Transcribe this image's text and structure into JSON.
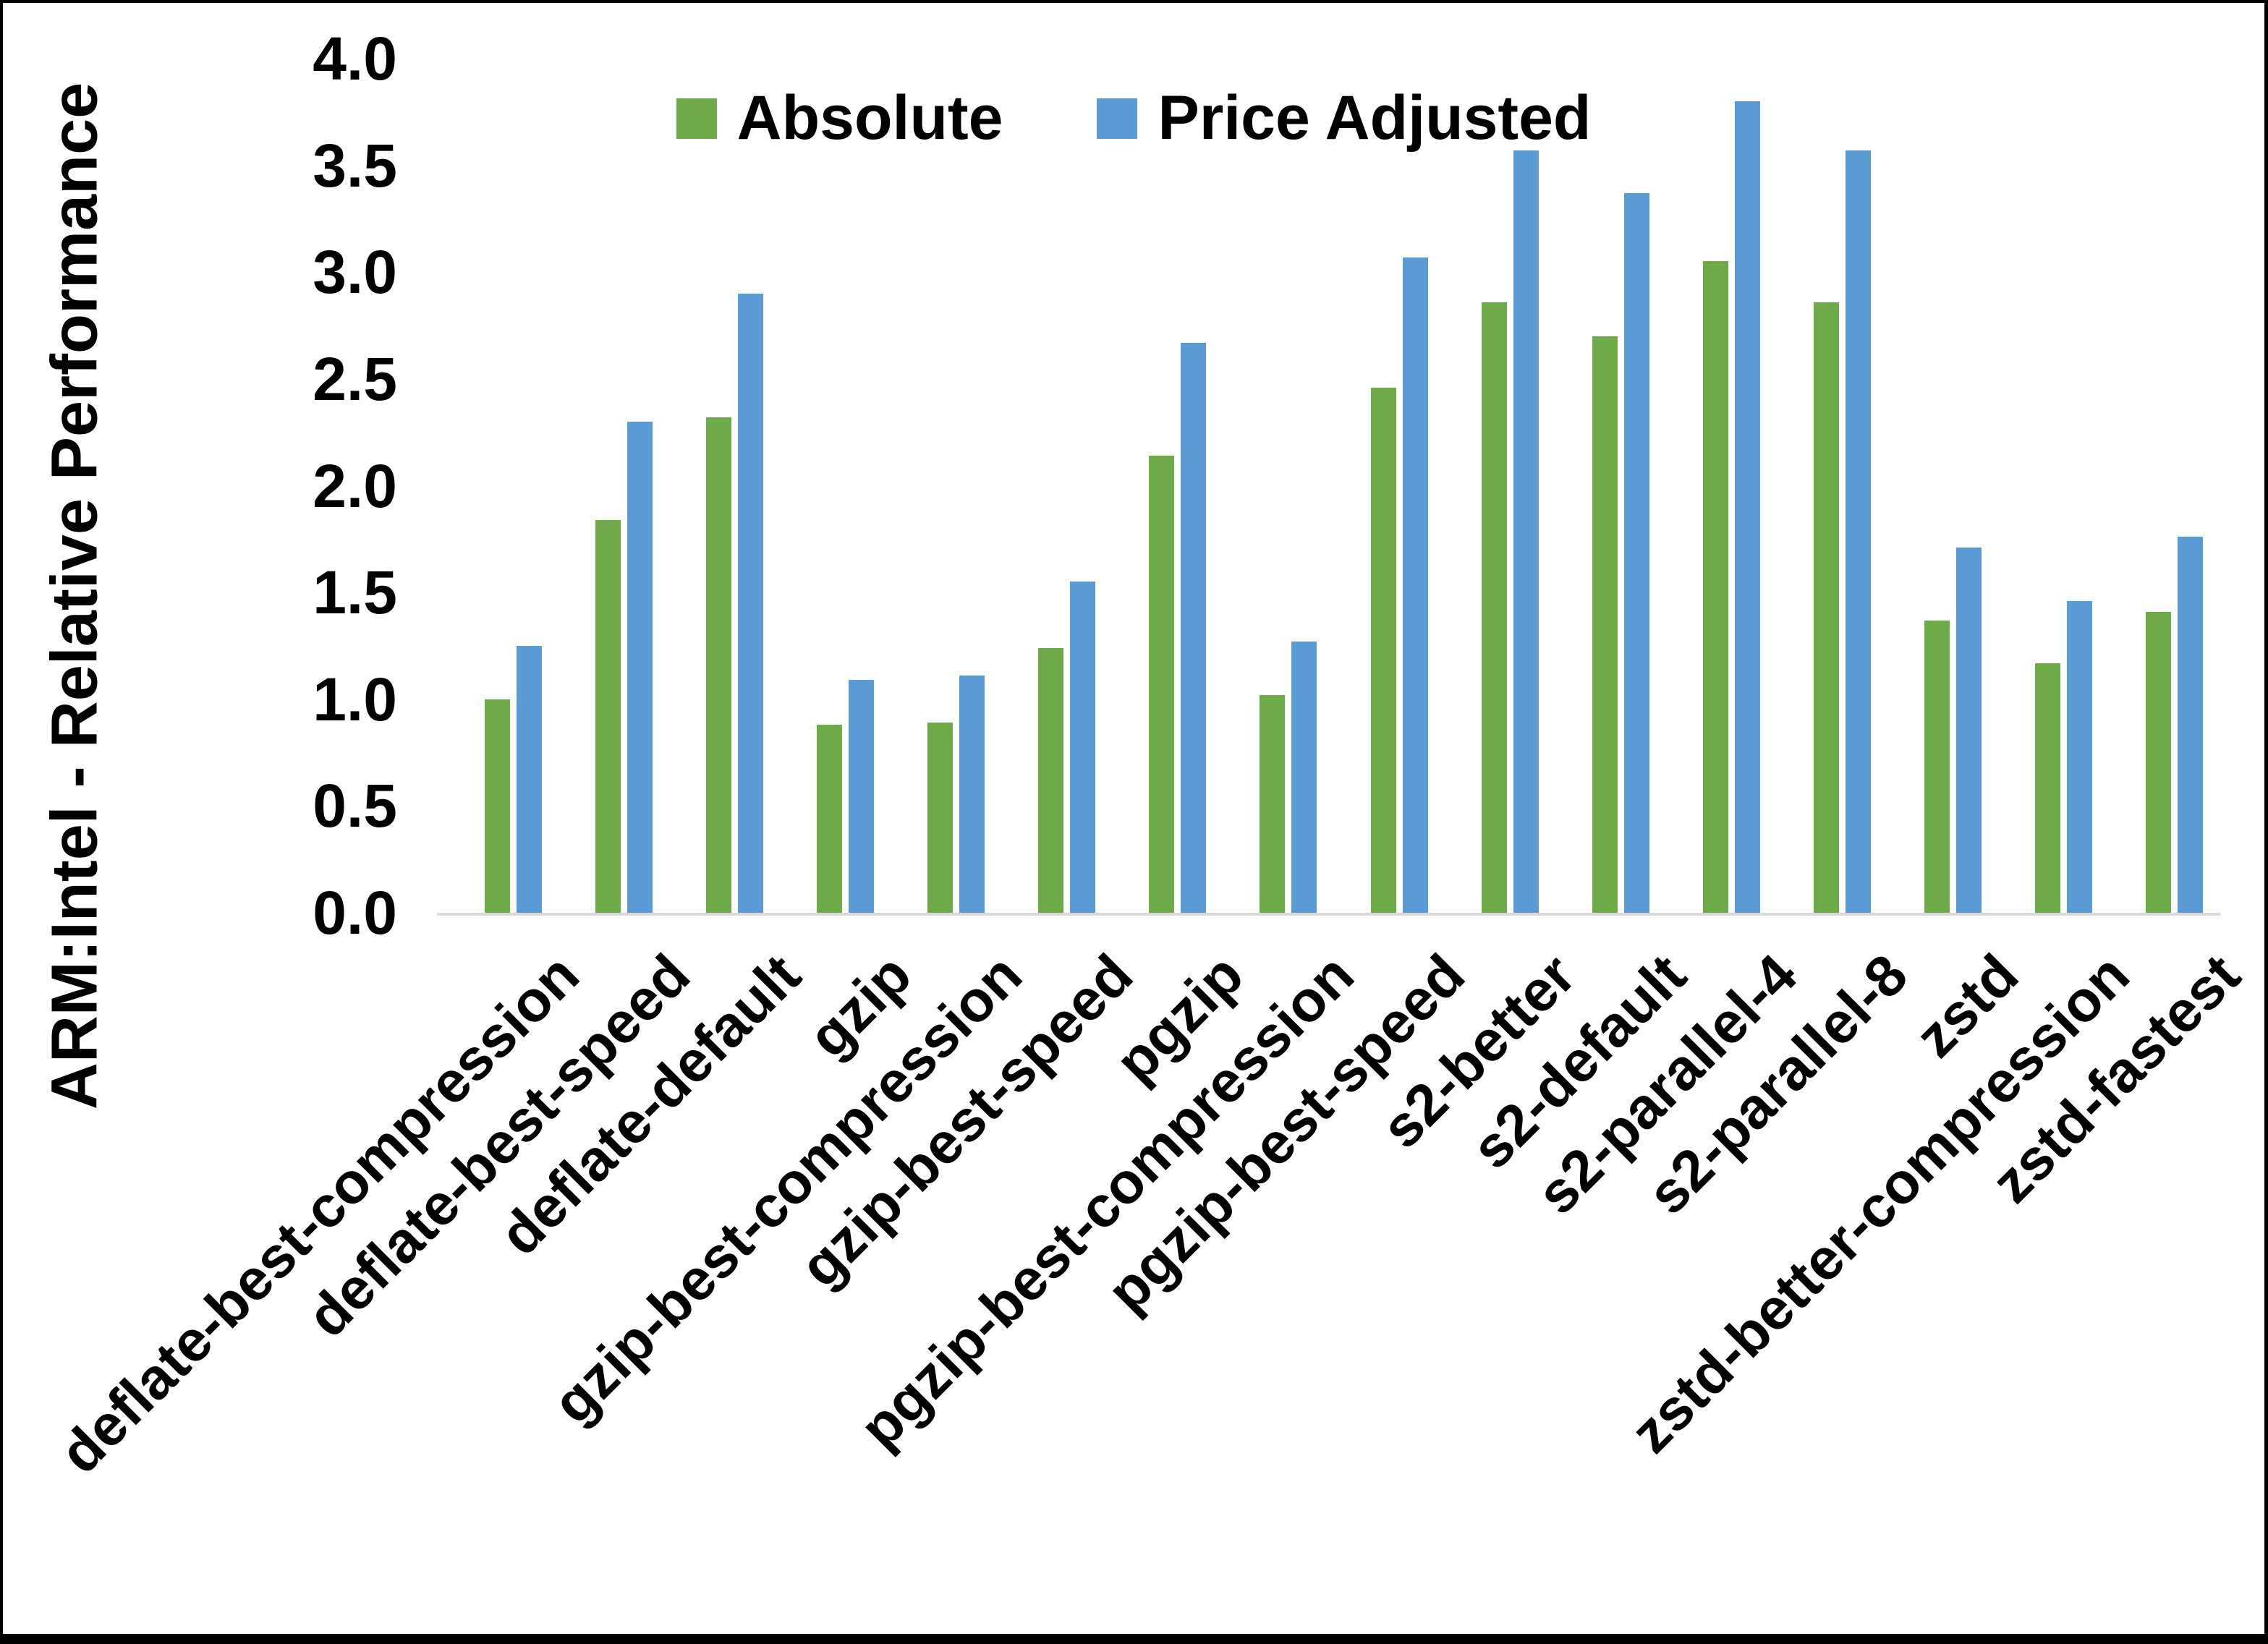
{
  "chart_data": {
    "type": "bar",
    "title": "",
    "xlabel": "",
    "ylabel": "ARM:Intel - Relative Performance",
    "ylim": [
      0.0,
      4.0
    ],
    "ytick_step": 0.5,
    "ytick_labels": [
      "0.0",
      "0.5",
      "1.0",
      "1.5",
      "2.0",
      "2.5",
      "3.0",
      "3.5",
      "4.0"
    ],
    "grid": false,
    "legend_position": "top-center",
    "categories": [
      "deflate-best-compression",
      "deflate-best-speed",
      "deflate-default",
      "gzip",
      "gzip-best-compression",
      "gzip-best-speed",
      "pgzip",
      "pgzip-best-compression",
      "pgzip-best-speed",
      "s2-better",
      "s2-default",
      "s2-parallel-4",
      "s2-parallel-8",
      "zstd",
      "zstd-better-compression",
      "zstd-fastest"
    ],
    "series": [
      {
        "name": "Absolute",
        "color": "#6EAA47",
        "values": [
          1.0,
          1.84,
          2.32,
          0.88,
          0.89,
          1.24,
          2.14,
          1.02,
          2.46,
          2.86,
          2.7,
          3.05,
          2.86,
          1.37,
          1.17,
          1.41
        ]
      },
      {
        "name": "Price Adjusted",
        "color": "#5B9BD5",
        "values": [
          1.25,
          2.3,
          2.9,
          1.09,
          1.11,
          1.55,
          2.67,
          1.27,
          3.07,
          3.57,
          3.37,
          3.8,
          3.57,
          1.71,
          1.46,
          1.76
        ]
      }
    ]
  },
  "colors": {
    "background": "#FFFFFF",
    "axis_line": "#D9D9D9",
    "text": "#000000",
    "frame": "#000000"
  }
}
